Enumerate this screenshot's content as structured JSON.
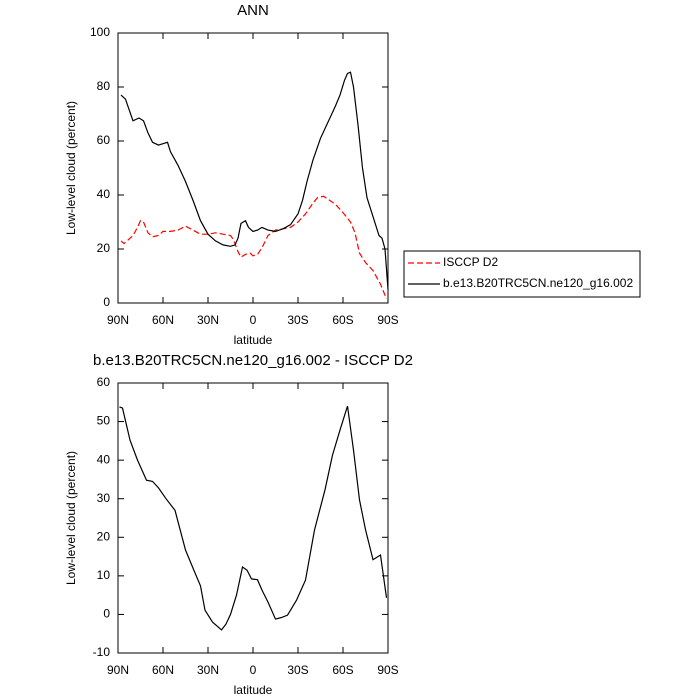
{
  "chart_data": [
    {
      "type": "line",
      "title": "ANN",
      "xlabel": "latitude",
      "ylabel": "Low-level cloud (percent)",
      "xlim": [
        90,
        -90
      ],
      "ylim": [
        0,
        100
      ],
      "xticks": [
        {
          "value": 90,
          "label": "90N"
        },
        {
          "value": 60,
          "label": "60N"
        },
        {
          "value": 30,
          "label": "30N"
        },
        0,
        {
          "value": -30,
          "label": "30S"
        },
        {
          "value": -60,
          "label": "60S"
        },
        {
          "value": -90,
          "label": "90S"
        }
      ],
      "yticks": [
        0,
        20,
        40,
        60,
        80,
        100
      ],
      "legend": "right",
      "series": [
        {
          "name": "ISCCP D2",
          "color": "#ff0000",
          "dashed": true,
          "x": [
            88,
            86,
            83,
            80,
            77,
            75,
            73,
            70,
            67,
            63,
            60,
            55,
            50,
            45,
            40,
            35,
            30,
            25,
            20,
            15,
            13,
            10,
            8,
            5,
            2,
            0,
            -3,
            -6,
            -10,
            -15,
            -20,
            -25,
            -30,
            -35,
            -40,
            -43,
            -47,
            -50,
            -55,
            -60,
            -65,
            -68,
            -71,
            -75,
            -80,
            -85,
            -89
          ],
          "values": [
            23,
            22,
            23.5,
            25,
            28,
            30.5,
            30,
            26,
            24.5,
            25,
            26.5,
            26.5,
            27,
            28.5,
            27,
            25.5,
            25.5,
            26,
            25.5,
            25,
            23.5,
            19,
            17,
            18,
            18.5,
            17.5,
            18,
            20.5,
            25,
            27,
            27.5,
            28,
            30,
            33,
            37,
            39,
            39.5,
            38.5,
            36.5,
            33.5,
            30,
            26,
            18.5,
            15,
            12,
            7,
            1.5
          ]
        },
        {
          "name": "b.e13.B20TRC5CN.ne120_g16.002",
          "color": "#000000",
          "dashed": false,
          "x": [
            88,
            85,
            80,
            76,
            73,
            70,
            67,
            63,
            60,
            57,
            55,
            50,
            45,
            40,
            35,
            30,
            25,
            20,
            15,
            12,
            10,
            8,
            5,
            3,
            0,
            -3,
            -6,
            -10,
            -15,
            -20,
            -25,
            -30,
            -33,
            -36,
            -40,
            -45,
            -50,
            -55,
            -58,
            -61,
            -63,
            -65,
            -67,
            -70,
            -73,
            -76,
            -80,
            -84,
            -86,
            -88,
            -90
          ],
          "values": [
            77,
            75.5,
            67.5,
            68.5,
            67.5,
            63,
            59.5,
            58.5,
            59,
            59.5,
            56,
            51,
            45,
            38,
            30.5,
            25.5,
            23,
            21.5,
            21,
            21.5,
            24,
            29.5,
            30.5,
            28,
            26.5,
            27,
            28,
            27,
            26.5,
            27.5,
            29,
            33,
            38,
            45,
            53,
            61,
            67,
            73,
            77,
            82.5,
            85,
            85.5,
            80,
            66,
            50,
            39,
            32,
            25,
            24,
            20,
            5
          ]
        }
      ]
    },
    {
      "type": "line",
      "title": "b.e13.B20TRC5CN.ne120_g16.002 - ISCCP D2",
      "xlabel": "latitude",
      "ylabel": "Low-level cloud (percent)",
      "xlim": [
        90,
        -90
      ],
      "ylim": [
        -10,
        60
      ],
      "xticks": [
        {
          "value": 90,
          "label": "90N"
        },
        {
          "value": 60,
          "label": "60N"
        },
        {
          "value": 30,
          "label": "30N"
        },
        0,
        {
          "value": -30,
          "label": "30S"
        },
        {
          "value": -60,
          "label": "60S"
        },
        {
          "value": -90,
          "label": "90S"
        }
      ],
      "yticks": [
        -10,
        0,
        10,
        20,
        30,
        40,
        50,
        60
      ],
      "color": "#000000",
      "x": [
        89,
        87,
        82,
        77,
        71,
        67,
        63,
        58,
        52,
        45,
        40,
        35,
        32,
        27,
        21,
        18,
        15,
        11,
        7,
        4,
        1,
        -3,
        -6,
        -10,
        -15,
        -19,
        -23,
        -29,
        -35,
        -41,
        -48,
        -53,
        -58,
        -63,
        -67,
        -71,
        -75,
        -80,
        -85,
        -89
      ],
      "values": [
        53.8,
        53.5,
        45.2,
        40,
        34.8,
        34.5,
        32.8,
        30,
        27,
        16.7,
        12,
        7.4,
        1.1,
        -2,
        -4,
        -2.5,
        0,
        5,
        12.3,
        11.5,
        9.2,
        9,
        6.3,
        3.2,
        -1.2,
        -0.8,
        -0.2,
        3.7,
        8.9,
        21.9,
        32.3,
        41.3,
        47.8,
        54,
        42.6,
        29.7,
        22,
        14.2,
        15.4,
        4.3
      ]
    }
  ]
}
